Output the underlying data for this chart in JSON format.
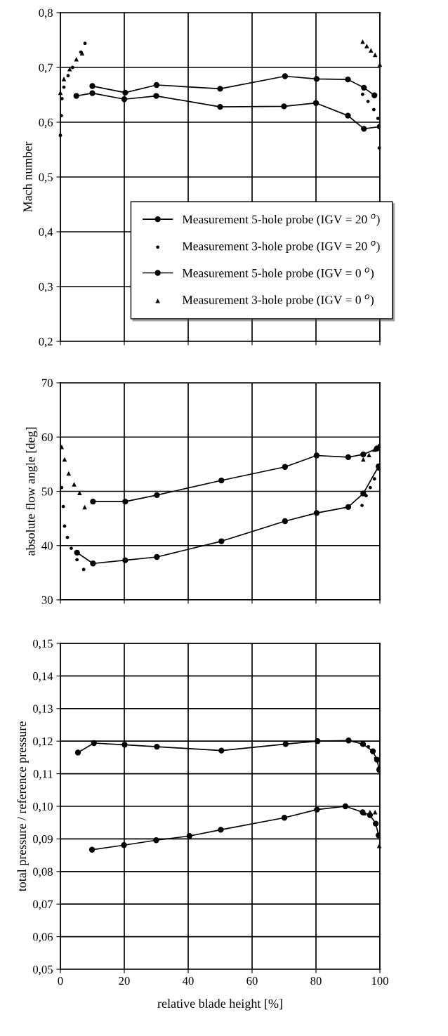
{
  "chart_data": [
    {
      "type": "line",
      "ylabel": "Mach number",
      "xlim": [
        0,
        100
      ],
      "xticks": [
        {
          "value": 0,
          "label": null
        },
        {
          "value": 20,
          "label": null
        },
        {
          "value": 40,
          "label": null
        },
        {
          "value": 60,
          "label": null
        },
        {
          "value": 80,
          "label": null
        },
        {
          "value": 100,
          "label": null
        }
      ],
      "ylim": [
        0.2,
        0.8
      ],
      "yticks": [
        {
          "value": 0.2,
          "label": "0,2"
        },
        {
          "value": 0.3,
          "label": "0,3"
        },
        {
          "value": 0.4,
          "label": "0,4"
        },
        {
          "value": 0.5,
          "label": "0,5"
        },
        {
          "value": 0.6,
          "label": "0,6"
        },
        {
          "value": 0.7,
          "label": "0,7"
        },
        {
          "value": 0.8,
          "label": "0,8"
        }
      ],
      "grid": true,
      "legend": "bottom",
      "tick_labels": "y",
      "series": [
        {
          "name": "Measurement 5-hole probe (IGV = 20 $^{o}$)",
          "type": "line",
          "marker": "circle",
          "color": "#000000",
          "x": [
            10.0,
            20.3,
            30.1,
            50,
            70.3,
            80.2,
            90,
            95,
            98.3
          ],
          "values": [
            0.666,
            0.654,
            0.668,
            0.661,
            0.684,
            0.679,
            0.678,
            0.663,
            0.649
          ]
        },
        {
          "name": "Measurement 3-hole probe (IGV = 20 $^{o}$)",
          "type": "scatter",
          "marker": "circle",
          "color": "#000000",
          "x": [
            0,
            0.3,
            0.5,
            1.1,
            2.4,
            3.8,
            5.1,
            6.4,
            7.7,
            94.6,
            96.3,
            98.1,
            99.4,
            99.8
          ],
          "values": [
            0.576,
            0.612,
            0.643,
            0.664,
            0.685,
            0.7,
            null,
            0.728,
            0.744,
            0.651,
            0.638,
            0.623,
            0.607,
            0.553
          ]
        },
        {
          "name": "Measurement 5-hole probe (IGV = 0 $^{o}$)",
          "type": "line",
          "marker": "circle",
          "color": "#000000",
          "x": [
            5,
            10,
            20,
            30,
            50,
            70,
            80,
            90,
            95,
            100
          ],
          "values": [
            0.648,
            0.653,
            0.642,
            0.648,
            0.628,
            0.629,
            0.635,
            0.612,
            0.588,
            0.592
          ]
        },
        {
          "name": "Measurement 3-hole probe (IGV = 0 $^{o}$)",
          "type": "scatter",
          "marker": "triangle",
          "color": "#000000",
          "x": [
            0,
            1.1,
            2.9,
            5,
            6.8,
            94.6,
            95.9,
            97.2,
            98.5,
            100
          ],
          "values": [
            0.654,
            0.679,
            0.697,
            0.715,
            0.726,
            0.747,
            0.739,
            0.731,
            0.723,
            0.705
          ]
        }
      ]
    },
    {
      "type": "line",
      "ylabel": "absolute flow angle [deg]",
      "xlim": [
        0,
        100
      ],
      "xticks": [
        {
          "value": 0,
          "label": null
        },
        {
          "value": 20,
          "label": null
        },
        {
          "value": 40,
          "label": null
        },
        {
          "value": 60,
          "label": null
        },
        {
          "value": 80,
          "label": null
        },
        {
          "value": 100,
          "label": null
        }
      ],
      "ylim": [
        30,
        70
      ],
      "yticks": [
        30,
        40,
        50,
        60,
        70
      ],
      "grid": true,
      "tick_labels": "y",
      "series": [
        {
          "type": "line",
          "marker": "circle",
          "color": "#000000",
          "x": [
            10.2,
            20.3,
            30.2,
            50.4,
            70.3,
            80.2,
            90.1,
            94.8,
            99.1
          ],
          "values": [
            48.1,
            48.1,
            49.3,
            52.0,
            54.5,
            56.6,
            56.3,
            56.8,
            57.9
          ]
        },
        {
          "type": "scatter",
          "marker": "circle",
          "color": "#000000",
          "x": [
            0.4,
            0.9,
            1.3,
            2.2,
            3.4,
            5.2,
            7.3,
            94.4,
            95.7,
            97,
            98.3,
            99.6
          ],
          "values": [
            50.7,
            47.2,
            43.6,
            41.5,
            39.5,
            37.4,
            35.6,
            47.4,
            49.2,
            50.7,
            52.3,
            54.1
          ]
        },
        {
          "type": "line",
          "marker": "circle",
          "color": "#000000",
          "x": [
            5.2,
            10.2,
            20.3,
            30.2,
            50.4,
            70.3,
            80.2,
            90.1,
            94.8,
            99.6
          ],
          "values": [
            38.7,
            36.7,
            37.3,
            37.9,
            40.8,
            44.5,
            46.0,
            47.1,
            49.6,
            54.6
          ]
        },
        {
          "type": "scatter",
          "marker": "triangle",
          "color": "#000000",
          "x": [
            0.4,
            1.3,
            2.6,
            4.3,
            6,
            7.6,
            94.8,
            96.6,
            98.3,
            99.6
          ],
          "values": [
            58.2,
            55.9,
            53.3,
            51.3,
            49.7,
            47.1,
            55.9,
            56.7,
            57.7,
            58.4
          ]
        }
      ]
    },
    {
      "type": "line",
      "xlabel": "relative blade height [%]",
      "ylabel": "total pressure / reference pressure",
      "xlim": [
        0,
        100
      ],
      "xticks": [
        0,
        20,
        40,
        60,
        80,
        100
      ],
      "ylim": [
        0.05,
        0.15
      ],
      "yticks": [
        {
          "value": 0.05,
          "label": "0,05"
        },
        {
          "value": 0.06,
          "label": "0,06"
        },
        {
          "value": 0.07,
          "label": "0,07"
        },
        {
          "value": 0.08,
          "label": "0,08"
        },
        {
          "value": 0.09,
          "label": "0,09"
        },
        {
          "value": 0.1,
          "label": "0,10"
        },
        {
          "value": 0.11,
          "label": "0,11"
        },
        {
          "value": 0.12,
          "label": "0,12"
        },
        {
          "value": 0.13,
          "label": "0,13"
        },
        {
          "value": 0.14,
          "label": "0,14"
        },
        {
          "value": 0.15,
          "label": "0,15"
        }
      ],
      "grid": true,
      "series": [
        {
          "type": "line",
          "marker": "circle",
          "color": "#000000",
          "x": [
            9.9,
            19.9,
            30,
            40.4,
            50.2,
            70.1,
            80.3,
            89.2,
            94.6,
            96.9,
            98.7,
            99.6
          ],
          "values": [
            0.0867,
            0.0881,
            0.0896,
            0.0909,
            0.0928,
            0.0965,
            0.099,
            0.1,
            0.0982,
            0.0973,
            0.0947,
            0.0911
          ]
        },
        {
          "type": "scatter",
          "marker": "circle",
          "color": "#000000",
          "x": [
            96.4,
            97.8,
            98.7,
            99.6
          ],
          "values": [
            0.1183,
            0.1165,
            0.1147,
            0.1117
          ]
        },
        {
          "type": "line",
          "marker": "circle",
          "color": "#000000",
          "x": [
            5.5,
            10.5,
            20.1,
            30.2,
            50.4,
            70.5,
            80.5,
            90.2,
            94.7,
            97.8,
            99.1,
            99.8
          ],
          "values": [
            0.1165,
            0.1194,
            0.1189,
            0.1183,
            0.1171,
            0.1191,
            0.12,
            0.1202,
            0.1191,
            0.1169,
            0.1143,
            0.1112
          ]
        },
        {
          "type": "scatter",
          "marker": "triangle",
          "color": "#000000",
          "x": [
            95.1,
            96.9,
            98.5,
            99.8
          ],
          "values": [
            0.0979,
            0.0982,
            0.0982,
            0.0879
          ]
        }
      ]
    }
  ]
}
